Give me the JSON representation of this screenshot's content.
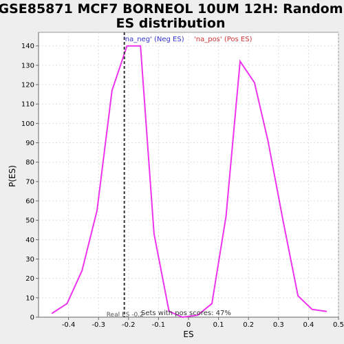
{
  "chart_data": {
    "type": "line",
    "title_line1": "GSE85871 MCF7 BORNEOL 10UM 12H: Random",
    "title_line2": "ES distribution",
    "xlabel": "ES",
    "ylabel": "P(ES)",
    "xlim": [
      -0.5,
      0.5
    ],
    "ylim": [
      0,
      147
    ],
    "x_ticks": [
      -0.4,
      -0.3,
      -0.2,
      -0.1,
      0.0,
      0.1,
      0.2,
      0.3,
      0.4,
      0.5
    ],
    "x_tick_labels": [
      "-0.4",
      "-0.3",
      "-0.2",
      "-0.1",
      "0",
      "0.1",
      "0.2",
      "0.3",
      "0.4",
      "0.5"
    ],
    "y_ticks": [
      0,
      10,
      20,
      30,
      40,
      50,
      60,
      70,
      80,
      90,
      100,
      110,
      120,
      130,
      140
    ],
    "y_tick_labels": [
      "0",
      "10",
      "20",
      "30",
      "40",
      "50",
      "60",
      "70",
      "80",
      "90",
      "100",
      "110",
      "120",
      "130",
      "140"
    ],
    "grid": true,
    "series": [
      {
        "color": "#ee33ee",
        "x": [
          -0.455,
          -0.405,
          -0.355,
          -0.305,
          -0.255,
          -0.205,
          -0.16,
          -0.115,
          -0.065,
          -0.02,
          0.03,
          0.078,
          0.125,
          0.172,
          0.22,
          0.265,
          0.315,
          0.365,
          0.412,
          0.46
        ],
        "y": [
          2,
          7,
          24,
          55,
          117,
          140,
          140,
          43,
          3,
          0,
          1,
          7,
          52,
          132,
          121,
          91,
          50,
          11,
          4,
          3
        ]
      }
    ],
    "real_es": -0.214,
    "real_es_label": "Real ES -0.2",
    "pos_scores_note": "Sets with pos scores: 47%",
    "legend_neg": "'na_neg' (Neg ES)",
    "legend_pos": "'na_pos' (Pos ES)",
    "colors": {
      "line": "#ee33ee",
      "legend_neg": "#3333cc",
      "legend_pos": "#cc3333",
      "marker": "#333333",
      "grid": "#dddddd",
      "plot_bg": "#ffffff",
      "page_bg": "#eeeeee"
    }
  }
}
